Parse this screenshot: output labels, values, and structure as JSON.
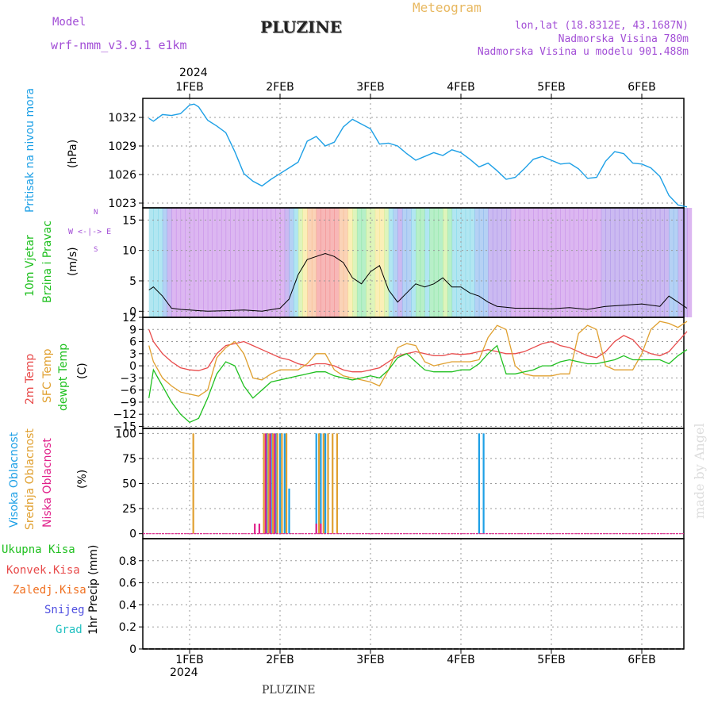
{
  "header": {
    "model_label": "Model",
    "model_name": "wrf-nmm_v3.9.1 e1km",
    "station": "PLUZINE",
    "meteogram": "Meteogram",
    "lonlat": "lon,lat (18.8312E, 43.1687N)",
    "elevation": "Nadmorska Visina 780m",
    "model_elevation": "Nadmorska Visina u modelu 901.488m",
    "year_top": "2024",
    "year_bottom": "2024",
    "footer": "PLUZINE",
    "credit": "made by Angel"
  },
  "axis_days": [
    "1FEB",
    "2FEB",
    "3FEB",
    "4FEB",
    "5FEB",
    "6FEB"
  ],
  "panel_labels": {
    "pressure": {
      "line1": "Pritisak na nivou mora",
      "unit": "(hPa)"
    },
    "wind": {
      "line1": "10m Vjetar",
      "line2": "Brzina i Pravac",
      "unit": "(m/s)",
      "compass": "W <-|-> E",
      "compass_n": "N",
      "compass_s": "S"
    },
    "temp": {
      "line1": "2m Temp",
      "line2": "SFC Temp",
      "line3": "dewpt Temp",
      "unit": "(C)"
    },
    "cloud": {
      "line1": "Visoka Oblacnost",
      "line2": "Srednja Oblacnost",
      "line3": "Niska Oblacnost",
      "unit": "(%)"
    },
    "precip": {
      "unit": "1hr Precip (mm)",
      "legend": [
        "Ukupna Kisa",
        "Konvek.Kisa",
        "Zaledj.Kisa",
        "Snijeg",
        "Grad"
      ]
    }
  },
  "colors": {
    "pressure": "#1ea0e6",
    "wind_speed": "#000000",
    "t2m": "#e84a4a",
    "sfc": "#e0a030",
    "dewpt": "#20c020",
    "cloud_high": "#1ea0e6",
    "cloud_mid": "#e0a030",
    "cloud_low": "#e0208a",
    "legend_total": "#20c020",
    "legend_conv": "#e84a4a",
    "legend_frz": "#f07020",
    "legend_snow": "#5050e0",
    "legend_hail": "#20c0c0"
  },
  "chart_data": [
    {
      "type": "line",
      "name": "pressure",
      "ylim": [
        1022.5,
        1034
      ],
      "yticks": [
        1023,
        1026,
        1029,
        1032
      ],
      "x_days": [
        0.55,
        0.6,
        0.7,
        0.8,
        0.9,
        1.0,
        1.05,
        1.1,
        1.2,
        1.3,
        1.4,
        1.5,
        1.6,
        1.7,
        1.8,
        1.9,
        2.0,
        2.1,
        2.2,
        2.3,
        2.4,
        2.5,
        2.6,
        2.7,
        2.8,
        2.9,
        3.0,
        3.1,
        3.2,
        3.3,
        3.4,
        3.5,
        3.6,
        3.7,
        3.8,
        3.9,
        4.0,
        4.1,
        4.2,
        4.3,
        4.4,
        4.5,
        4.6,
        4.7,
        4.8,
        4.9,
        5.0,
        5.1,
        5.2,
        5.3,
        5.4,
        5.5,
        5.6,
        5.7,
        5.8,
        5.9,
        6.0,
        6.1,
        6.2,
        6.3,
        6.4,
        6.5
      ],
      "values": [
        1031.9,
        1031.6,
        1032.3,
        1032.2,
        1032.4,
        1033.3,
        1033.4,
        1033.1,
        1031.7,
        1031.1,
        1030.4,
        1028.4,
        1026.1,
        1025.3,
        1024.8,
        1025.5,
        1026.1,
        1026.7,
        1027.3,
        1029.5,
        1030.0,
        1029.0,
        1029.4,
        1031.0,
        1031.8,
        1031.3,
        1030.8,
        1029.2,
        1029.3,
        1029.0,
        1028.2,
        1027.5,
        1027.9,
        1028.3,
        1028.0,
        1028.6,
        1028.3,
        1027.6,
        1026.8,
        1027.2,
        1026.4,
        1025.5,
        1025.7,
        1026.6,
        1027.6,
        1027.9,
        1027.5,
        1027.1,
        1027.2,
        1026.6,
        1025.6,
        1025.7,
        1027.4,
        1028.4,
        1028.2,
        1027.2,
        1027.1,
        1026.7,
        1025.8,
        1023.8,
        1022.8,
        1022.6
      ]
    },
    {
      "type": "line",
      "name": "wind_speed",
      "ylim": [
        -1,
        17
      ],
      "yticks": [
        0,
        5,
        10,
        15
      ],
      "x_days": [
        0.55,
        0.6,
        0.7,
        0.8,
        0.9,
        1.0,
        1.2,
        1.4,
        1.6,
        1.8,
        2.0,
        2.1,
        2.2,
        2.3,
        2.4,
        2.5,
        2.6,
        2.7,
        2.8,
        2.9,
        3.0,
        3.1,
        3.2,
        3.3,
        3.4,
        3.5,
        3.6,
        3.7,
        3.8,
        3.9,
        4.0,
        4.1,
        4.2,
        4.3,
        4.4,
        4.6,
        4.8,
        5.0,
        5.2,
        5.4,
        5.6,
        5.8,
        6.0,
        6.2,
        6.3,
        6.4,
        6.5
      ],
      "values": [
        3.5,
        4.0,
        2.5,
        0.5,
        0.3,
        0.2,
        0.0,
        0.1,
        0.2,
        0.0,
        0.5,
        2.0,
        6.0,
        8.5,
        9.0,
        9.5,
        9.0,
        8.0,
        5.5,
        4.5,
        6.5,
        7.5,
        3.5,
        1.5,
        3.0,
        4.5,
        4.0,
        4.5,
        5.5,
        4.0,
        4.0,
        3.0,
        2.5,
        1.5,
        0.8,
        0.5,
        0.5,
        0.4,
        0.6,
        0.3,
        0.8,
        1.0,
        1.2,
        0.8,
        2.5,
        1.5,
        0.5
      ]
    },
    {
      "type": "line",
      "name": "temperature",
      "ylim": [
        -15.5,
        12
      ],
      "yticks": [
        -15,
        -12,
        -9,
        -6,
        -3,
        0,
        3,
        6,
        9,
        12
      ],
      "x_days": [
        0.55,
        0.6,
        0.7,
        0.8,
        0.9,
        1.0,
        1.1,
        1.2,
        1.3,
        1.4,
        1.5,
        1.6,
        1.7,
        1.8,
        1.9,
        2.0,
        2.1,
        2.2,
        2.3,
        2.4,
        2.5,
        2.6,
        2.7,
        2.8,
        2.9,
        3.0,
        3.1,
        3.2,
        3.3,
        3.4,
        3.5,
        3.6,
        3.7,
        3.8,
        3.9,
        4.0,
        4.1,
        4.2,
        4.3,
        4.4,
        4.5,
        4.6,
        4.7,
        4.8,
        4.9,
        5.0,
        5.1,
        5.2,
        5.3,
        5.4,
        5.5,
        5.6,
        5.7,
        5.8,
        5.9,
        6.0,
        6.1,
        6.2,
        6.3,
        6.4,
        6.5
      ],
      "series": [
        {
          "name": "2m Temp",
          "values": [
            9.0,
            6.0,
            3.0,
            1.0,
            -0.5,
            -1.0,
            -1.2,
            -0.5,
            3.0,
            5.0,
            5.5,
            6.0,
            5.0,
            4.0,
            3.0,
            2.0,
            1.5,
            0.5,
            0.0,
            0.5,
            0.5,
            0.0,
            -1.0,
            -1.5,
            -1.5,
            -1.0,
            -0.5,
            1.0,
            2.5,
            3.0,
            3.5,
            3.0,
            2.5,
            2.5,
            3.0,
            2.8,
            3.0,
            3.5,
            4.0,
            3.5,
            3.0,
            3.0,
            3.5,
            4.5,
            5.5,
            6.0,
            5.0,
            4.5,
            3.5,
            2.5,
            2.0,
            3.5,
            6.0,
            7.5,
            6.5,
            4.0,
            3.0,
            2.5,
            3.5,
            6.0,
            8.5
          ]
        },
        {
          "name": "SFC Temp",
          "values": [
            5.0,
            1.0,
            -3.0,
            -5.0,
            -6.5,
            -7.0,
            -7.5,
            -6.0,
            2.0,
            4.5,
            6.0,
            3.0,
            -3.0,
            -3.5,
            -2.0,
            -1.0,
            -1.0,
            -1.0,
            0.5,
            3.0,
            3.0,
            -1.0,
            -2.5,
            -3.0,
            -3.5,
            -4.0,
            -5.0,
            -1.0,
            4.5,
            5.5,
            5.0,
            1.0,
            0.0,
            0.5,
            1.0,
            1.0,
            1.0,
            1.5,
            7.0,
            10.0,
            9.0,
            0.0,
            -2.0,
            -2.5,
            -2.5,
            -2.5,
            -2.0,
            -2.0,
            8.0,
            10.0,
            9.0,
            0.0,
            -1.0,
            -1.0,
            -1.0,
            3.0,
            9.0,
            11.0,
            10.5,
            9.5,
            11.0
          ]
        },
        {
          "name": "dewpt Temp",
          "values": [
            -8.0,
            -1.0,
            -5.0,
            -9.0,
            -12.0,
            -14.0,
            -13.0,
            -8.0,
            -2.0,
            1.0,
            0.0,
            -5.0,
            -8.0,
            -6.0,
            -4.0,
            -3.5,
            -3.0,
            -2.5,
            -2.0,
            -1.5,
            -1.5,
            -2.5,
            -3.0,
            -3.5,
            -3.0,
            -2.5,
            -3.0,
            -1.0,
            2.0,
            3.0,
            1.0,
            -1.0,
            -1.5,
            -1.5,
            -1.5,
            -1.0,
            -1.0,
            0.5,
            3.0,
            5.0,
            -2.0,
            -2.0,
            -1.5,
            -1.0,
            0.0,
            0.0,
            1.0,
            1.5,
            1.0,
            0.5,
            0.5,
            1.0,
            1.5,
            2.5,
            1.5,
            1.5,
            1.5,
            1.5,
            0.5,
            2.5,
            4.0
          ]
        }
      ]
    },
    {
      "type": "bar",
      "name": "cloud_cover",
      "ylim": [
        -5,
        105
      ],
      "yticks": [
        0,
        25,
        50,
        75,
        100
      ],
      "series": [
        {
          "name": "Visoka Oblacnost",
          "x_days": [
            1.85,
            1.9,
            1.95,
            2.0,
            2.05,
            2.1,
            2.4,
            2.45,
            2.5,
            4.2,
            4.25
          ],
          "values": [
            100,
            100,
            100,
            100,
            100,
            45,
            100,
            100,
            100,
            100,
            100
          ]
        },
        {
          "name": "Srednja Oblacnost",
          "x_days": [
            1.04,
            1.82,
            1.87,
            1.92,
            1.97,
            2.02,
            2.07,
            2.43,
            2.48,
            2.53,
            2.58,
            2.63
          ],
          "values": [
            100,
            100,
            100,
            100,
            100,
            100,
            100,
            100,
            100,
            100,
            100,
            100
          ]
        },
        {
          "name": "Niska Oblacnost",
          "x_days": [
            1.72,
            1.77,
            1.84,
            1.89,
            1.94,
            2.4,
            2.45
          ],
          "values": [
            10,
            10,
            100,
            100,
            100,
            10,
            10
          ]
        }
      ]
    },
    {
      "type": "bar",
      "name": "precip",
      "ylim": [
        0,
        1.0
      ],
      "yticks": [
        0,
        0.2,
        0.4,
        0.6,
        0.8
      ],
      "values": []
    }
  ]
}
